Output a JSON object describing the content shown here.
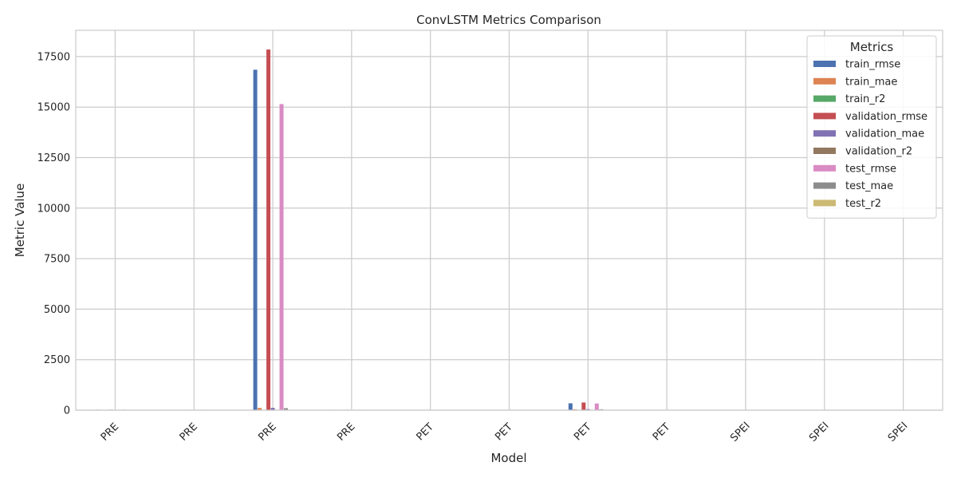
{
  "chart_data": {
    "type": "bar",
    "title": "ConvLSTM Metrics Comparison",
    "xlabel": "Model",
    "ylabel": "Metric Value",
    "ylim": [
      0,
      18800
    ],
    "yticks": [
      0,
      2500,
      5000,
      7500,
      10000,
      12500,
      15000,
      17500
    ],
    "grid": true,
    "legend_title": "Metrics",
    "legend_position": "top-right",
    "categories": [
      "PRE",
      "PRE",
      "PRE",
      "PRE",
      "PET",
      "PET",
      "PET",
      "PET",
      "SPEI",
      "SPEI",
      "SPEI"
    ],
    "series": [
      {
        "name": "train_rmse",
        "color": "#4c72b0",
        "values": [
          25,
          20,
          16850,
          22,
          5,
          4,
          340,
          5,
          0.8,
          0.8,
          0.8
        ]
      },
      {
        "name": "train_mae",
        "color": "#dd8452",
        "values": [
          15,
          12,
          110,
          14,
          3,
          3,
          45,
          3,
          0.6,
          0.6,
          0.6
        ]
      },
      {
        "name": "train_r2",
        "color": "#55a868",
        "values": [
          0.8,
          0.85,
          0.1,
          0.8,
          0.9,
          0.9,
          0.2,
          0.9,
          0.5,
          0.5,
          0.5
        ]
      },
      {
        "name": "validation_rmse",
        "color": "#c44e52",
        "values": [
          26,
          22,
          17850,
          24,
          5,
          5,
          380,
          5,
          0.8,
          0.8,
          0.8
        ]
      },
      {
        "name": "validation_mae",
        "color": "#8172b3",
        "values": [
          16,
          13,
          115,
          15,
          3,
          3,
          50,
          3,
          0.6,
          0.6,
          0.6
        ]
      },
      {
        "name": "validation_r2",
        "color": "#937860",
        "values": [
          0.8,
          0.85,
          0.1,
          0.8,
          0.9,
          0.9,
          0.2,
          0.9,
          0.5,
          0.5,
          0.5
        ]
      },
      {
        "name": "test_rmse",
        "color": "#da8bc3",
        "values": [
          27,
          23,
          15150,
          24,
          5,
          5,
          330,
          5,
          0.8,
          0.8,
          0.8
        ]
      },
      {
        "name": "test_mae",
        "color": "#8c8c8c",
        "values": [
          16,
          13,
          100,
          15,
          3,
          3,
          45,
          3,
          0.6,
          0.6,
          0.6
        ]
      },
      {
        "name": "test_r2",
        "color": "#ccb974",
        "values": [
          0.8,
          0.85,
          0.1,
          0.8,
          0.9,
          0.9,
          0.2,
          0.9,
          0.5,
          0.5,
          0.5
        ]
      }
    ]
  }
}
